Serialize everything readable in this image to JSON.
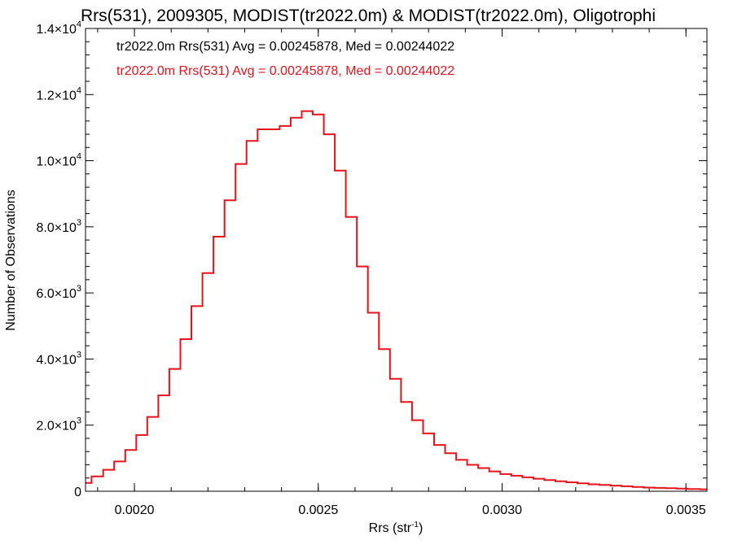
{
  "chart_data": {
    "type": "line",
    "title": "Rrs(531), 2009305, MODIST(tr2022.0m) & MODIST(tr2022.0m), Oligotrophi",
    "xlabel": "Rrs (str",
    "xlabel_sup": "-1",
    "xlabel_end": ")",
    "ylabel": "Number of Observations",
    "xlim": [
      0.001867,
      0.003557
    ],
    "ylim": [
      0,
      14000
    ],
    "x_ticks": [
      {
        "value": 0.002,
        "label": "0.0020"
      },
      {
        "value": 0.0025,
        "label": "0.0025"
      },
      {
        "value": 0.003,
        "label": "0.0030"
      },
      {
        "value": 0.0035,
        "label": "0.0035"
      }
    ],
    "y_ticks": [
      {
        "value": 0,
        "mant": "0",
        "exp": ""
      },
      {
        "value": 2000,
        "mant": "2.0×10",
        "exp": "3"
      },
      {
        "value": 4000,
        "mant": "4.0×10",
        "exp": "3"
      },
      {
        "value": 6000,
        "mant": "6.0×10",
        "exp": "3"
      },
      {
        "value": 8000,
        "mant": "8.0×10",
        "exp": "3"
      },
      {
        "value": 10000,
        "mant": "1.0×10",
        "exp": "4"
      },
      {
        "value": 12000,
        "mant": "1.2×10",
        "exp": "4"
      },
      {
        "value": 14000,
        "mant": "1.4×10",
        "exp": "4"
      }
    ],
    "annotations": [
      {
        "text": "tr2022.0m Rrs(531) Avg = 0.00245878, Med = 0.00244022",
        "color": "#000000"
      },
      {
        "text": "tr2022.0m Rrs(531) Avg = 0.00245878, Med = 0.00244022",
        "color": "#e8121b"
      }
    ],
    "series": [
      {
        "color": "#e8121b",
        "step": true,
        "x": [
          0.001867,
          0.0019,
          0.00193,
          0.00196,
          0.00199,
          0.00202,
          0.00205,
          0.00208,
          0.00211,
          0.00214,
          0.00217,
          0.0022,
          0.00223,
          0.00226,
          0.00229,
          0.00232,
          0.00235,
          0.00238,
          0.00241,
          0.00244,
          0.00247,
          0.0025,
          0.00253,
          0.00256,
          0.00259,
          0.00262,
          0.00265,
          0.00268,
          0.00271,
          0.00274,
          0.00277,
          0.0028,
          0.00283,
          0.00286,
          0.00289,
          0.00292,
          0.00295,
          0.00298,
          0.00301,
          0.00304,
          0.00307,
          0.0031,
          0.00313,
          0.00316,
          0.00319,
          0.00322,
          0.00325,
          0.00328,
          0.00331,
          0.00334,
          0.00337,
          0.0034,
          0.00343,
          0.00346,
          0.00349,
          0.00352,
          0.003557
        ],
        "y": [
          250,
          450,
          650,
          900,
          1250,
          1700,
          2250,
          2900,
          3700,
          4600,
          5600,
          6600,
          7700,
          8800,
          9900,
          10600,
          10950,
          10950,
          11050,
          11300,
          11500,
          11400,
          10800,
          9700,
          8300,
          6800,
          5400,
          4300,
          3400,
          2700,
          2150,
          1750,
          1400,
          1150,
          950,
          800,
          700,
          600,
          520,
          470,
          420,
          380,
          340,
          300,
          270,
          240,
          210,
          190,
          170,
          150,
          130,
          110,
          100,
          90,
          80,
          70,
          60
        ]
      }
    ]
  }
}
